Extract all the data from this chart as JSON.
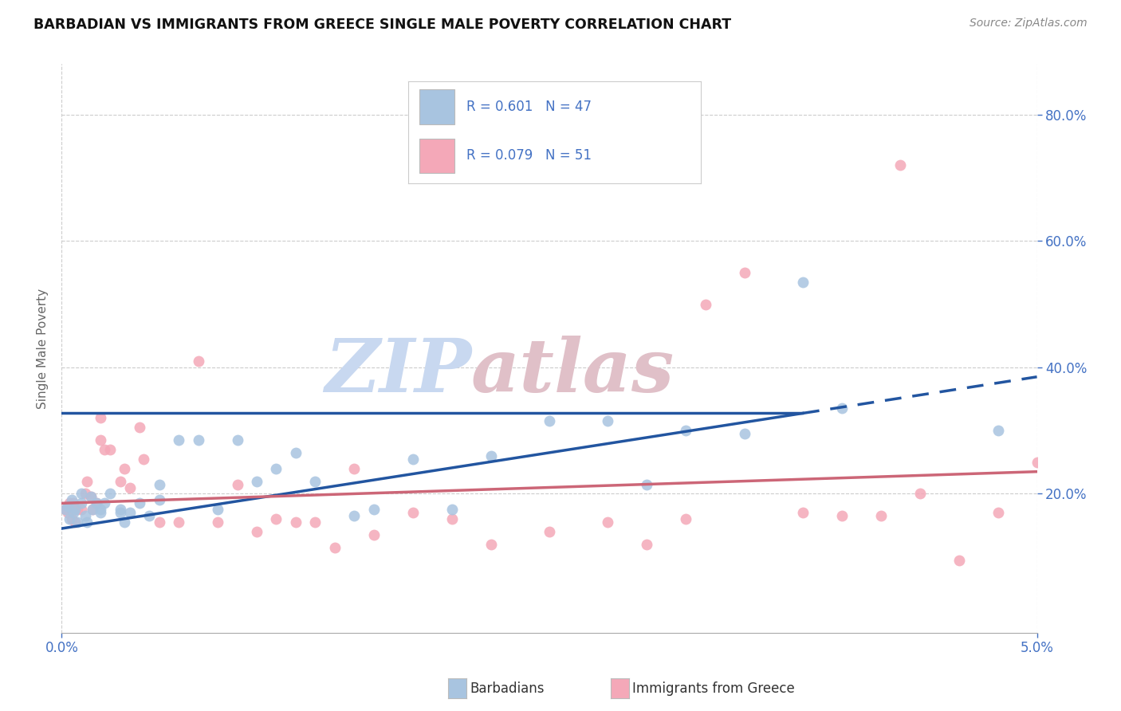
{
  "title": "BARBADIAN VS IMMIGRANTS FROM GREECE SINGLE MALE POVERTY CORRELATION CHART",
  "source": "Source: ZipAtlas.com",
  "ylabel": "Single Male Poverty",
  "right_yticks": [
    "80.0%",
    "60.0%",
    "40.0%",
    "20.0%"
  ],
  "right_ytick_vals": [
    0.8,
    0.6,
    0.4,
    0.2
  ],
  "barbadian_color": "#a8c4e0",
  "greece_color": "#f4a8b8",
  "barbadian_line_color": "#2255a0",
  "greece_line_color": "#cc6677",
  "xlim": [
    0.0,
    0.05
  ],
  "ylim": [
    -0.02,
    0.88
  ],
  "barbadian_x": [
    0.0002,
    0.0003,
    0.0004,
    0.0005,
    0.0006,
    0.0007,
    0.0008,
    0.001,
    0.001,
    0.0012,
    0.0013,
    0.0015,
    0.0016,
    0.0018,
    0.002,
    0.002,
    0.0022,
    0.0025,
    0.003,
    0.003,
    0.0032,
    0.0035,
    0.004,
    0.0045,
    0.005,
    0.005,
    0.006,
    0.007,
    0.008,
    0.009,
    0.01,
    0.011,
    0.012,
    0.013,
    0.015,
    0.016,
    0.018,
    0.02,
    0.022,
    0.025,
    0.028,
    0.03,
    0.032,
    0.035,
    0.038,
    0.04,
    0.048
  ],
  "barbadian_y": [
    0.175,
    0.18,
    0.16,
    0.19,
    0.17,
    0.175,
    0.155,
    0.2,
    0.185,
    0.165,
    0.155,
    0.195,
    0.175,
    0.185,
    0.175,
    0.17,
    0.185,
    0.2,
    0.175,
    0.17,
    0.155,
    0.17,
    0.185,
    0.165,
    0.215,
    0.19,
    0.285,
    0.285,
    0.175,
    0.285,
    0.22,
    0.24,
    0.265,
    0.22,
    0.165,
    0.175,
    0.255,
    0.175,
    0.26,
    0.315,
    0.315,
    0.215,
    0.3,
    0.295,
    0.535,
    0.335,
    0.3
  ],
  "greece_x": [
    0.0002,
    0.0003,
    0.0004,
    0.0005,
    0.0006,
    0.0007,
    0.0008,
    0.001,
    0.0012,
    0.0013,
    0.0015,
    0.0016,
    0.0018,
    0.002,
    0.002,
    0.0022,
    0.0025,
    0.003,
    0.0032,
    0.0035,
    0.004,
    0.0042,
    0.005,
    0.006,
    0.007,
    0.008,
    0.009,
    0.01,
    0.011,
    0.012,
    0.013,
    0.014,
    0.015,
    0.016,
    0.018,
    0.02,
    0.022,
    0.025,
    0.028,
    0.03,
    0.032,
    0.033,
    0.035,
    0.038,
    0.04,
    0.042,
    0.043,
    0.044,
    0.046,
    0.048,
    0.05
  ],
  "greece_y": [
    0.175,
    0.17,
    0.185,
    0.16,
    0.185,
    0.155,
    0.175,
    0.175,
    0.2,
    0.22,
    0.195,
    0.175,
    0.185,
    0.285,
    0.32,
    0.27,
    0.27,
    0.22,
    0.24,
    0.21,
    0.305,
    0.255,
    0.155,
    0.155,
    0.41,
    0.155,
    0.215,
    0.14,
    0.16,
    0.155,
    0.155,
    0.115,
    0.24,
    0.135,
    0.17,
    0.16,
    0.12,
    0.14,
    0.155,
    0.12,
    0.16,
    0.5,
    0.55,
    0.17,
    0.165,
    0.165,
    0.72,
    0.2,
    0.095,
    0.17,
    0.25
  ],
  "line_blue_x0": 0.0,
  "line_blue_y0": 0.145,
  "line_blue_x1": 0.05,
  "line_blue_y1": 0.385,
  "line_blue_dash_start": 0.038,
  "line_pink_x0": 0.0,
  "line_pink_y0": 0.185,
  "line_pink_x1": 0.05,
  "line_pink_y1": 0.235,
  "watermark_zip_color": "#c8d8f0",
  "watermark_atlas_color": "#e0c0c8"
}
